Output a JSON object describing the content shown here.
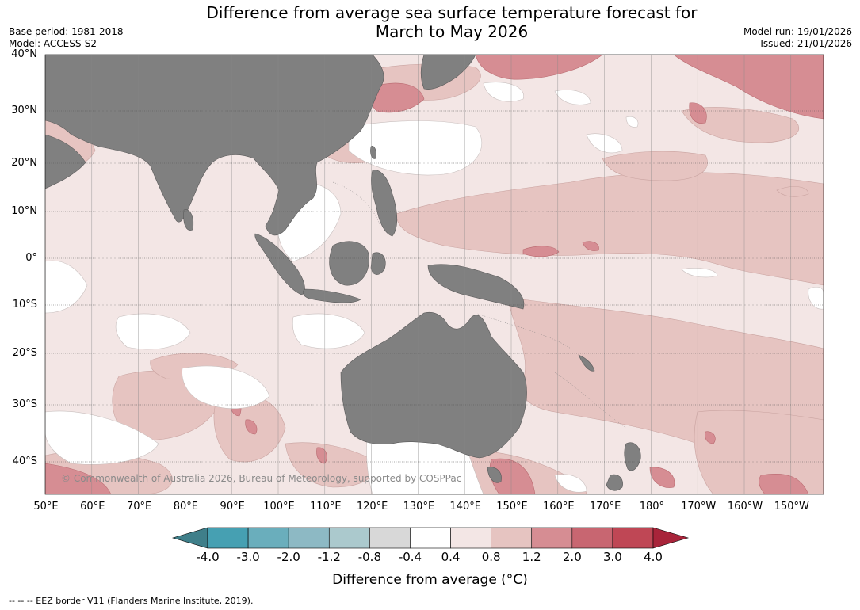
{
  "header": {
    "title_line1": "Difference from average sea surface temperature forecast for",
    "title_line2": "March to May 2026",
    "base_period": "Base period: 1981-2018",
    "model": "Model: ACCESS-S2",
    "model_run": "Model run: 19/01/2026",
    "issued": "Issued: 21/01/2026"
  },
  "map": {
    "latitude_labels": [
      "40°N",
      "30°N",
      "20°N",
      "10°N",
      "0°",
      "10°S",
      "20°S",
      "30°S",
      "40°S"
    ],
    "longitude_labels": [
      "50°E",
      "60°E",
      "70°E",
      "80°E",
      "90°E",
      "100°E",
      "110°E",
      "120°E",
      "130°E",
      "140°E",
      "150°E",
      "160°E",
      "170°E",
      "180°",
      "170°W",
      "160°W",
      "150°W"
    ],
    "copyright": "© Commonwealth of Australia 2026, Bureau of Meteorology, supported by COSPPac",
    "land_color": "#808080"
  },
  "colorbar": {
    "ticks": [
      "-4.0",
      "-3.0",
      "-2.0",
      "-1.2",
      "-0.8",
      "-0.4",
      "0.4",
      "0.8",
      "1.2",
      "2.0",
      "3.0",
      "4.0"
    ],
    "colors": [
      "#3f7f8a",
      "#46a0b2",
      "#6aaebc",
      "#8db9c4",
      "#abc9cd",
      "#d8d8d8",
      "#ffffff",
      "#f3e6e5",
      "#e6c4c1",
      "#d68d93",
      "#c86671",
      "#bf4755",
      "#a8243a"
    ],
    "label": "Difference from average (°C)"
  },
  "footnote": "--  --  -- EEZ border V11 (Flanders Marine Institute, 2019)."
}
